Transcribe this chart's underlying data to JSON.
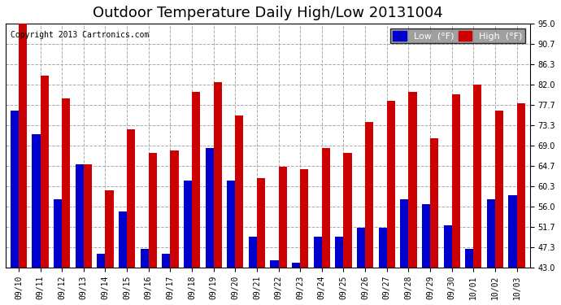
{
  "title": "Outdoor Temperature Daily High/Low 20131004",
  "copyright": "Copyright 2013 Cartronics.com",
  "legend_low": "Low  (°F)",
  "legend_high": "High  (°F)",
  "dates": [
    "09/10",
    "09/11",
    "09/12",
    "09/13",
    "09/14",
    "09/15",
    "09/16",
    "09/17",
    "09/18",
    "09/19",
    "09/20",
    "09/21",
    "09/22",
    "09/23",
    "09/24",
    "09/25",
    "09/26",
    "09/27",
    "09/28",
    "09/29",
    "09/30",
    "10/01",
    "10/02",
    "10/03"
  ],
  "highs": [
    95.0,
    84.0,
    79.0,
    65.0,
    59.5,
    72.5,
    67.5,
    68.0,
    80.5,
    82.5,
    75.5,
    62.0,
    64.5,
    64.0,
    68.5,
    67.5,
    74.0,
    78.5,
    80.5,
    70.5,
    80.0,
    82.0,
    76.5,
    78.0
  ],
  "lows": [
    76.5,
    71.5,
    57.5,
    65.0,
    46.0,
    55.0,
    47.0,
    46.0,
    61.5,
    68.5,
    61.5,
    49.5,
    44.5,
    44.0,
    49.5,
    49.5,
    51.5,
    51.5,
    57.5,
    56.5,
    52.0,
    47.0,
    57.5,
    58.5
  ],
  "ymin": 43.0,
  "ymax": 95.0,
  "yticks": [
    43.0,
    47.3,
    51.7,
    56.0,
    60.3,
    64.7,
    69.0,
    73.3,
    77.7,
    82.0,
    86.3,
    90.7,
    95.0
  ],
  "low_color": "#0000cc",
  "high_color": "#cc0000",
  "bg_color": "#ffffff",
  "grid_color": "#aaaaaa",
  "title_fontsize": 13,
  "bar_width": 0.38
}
